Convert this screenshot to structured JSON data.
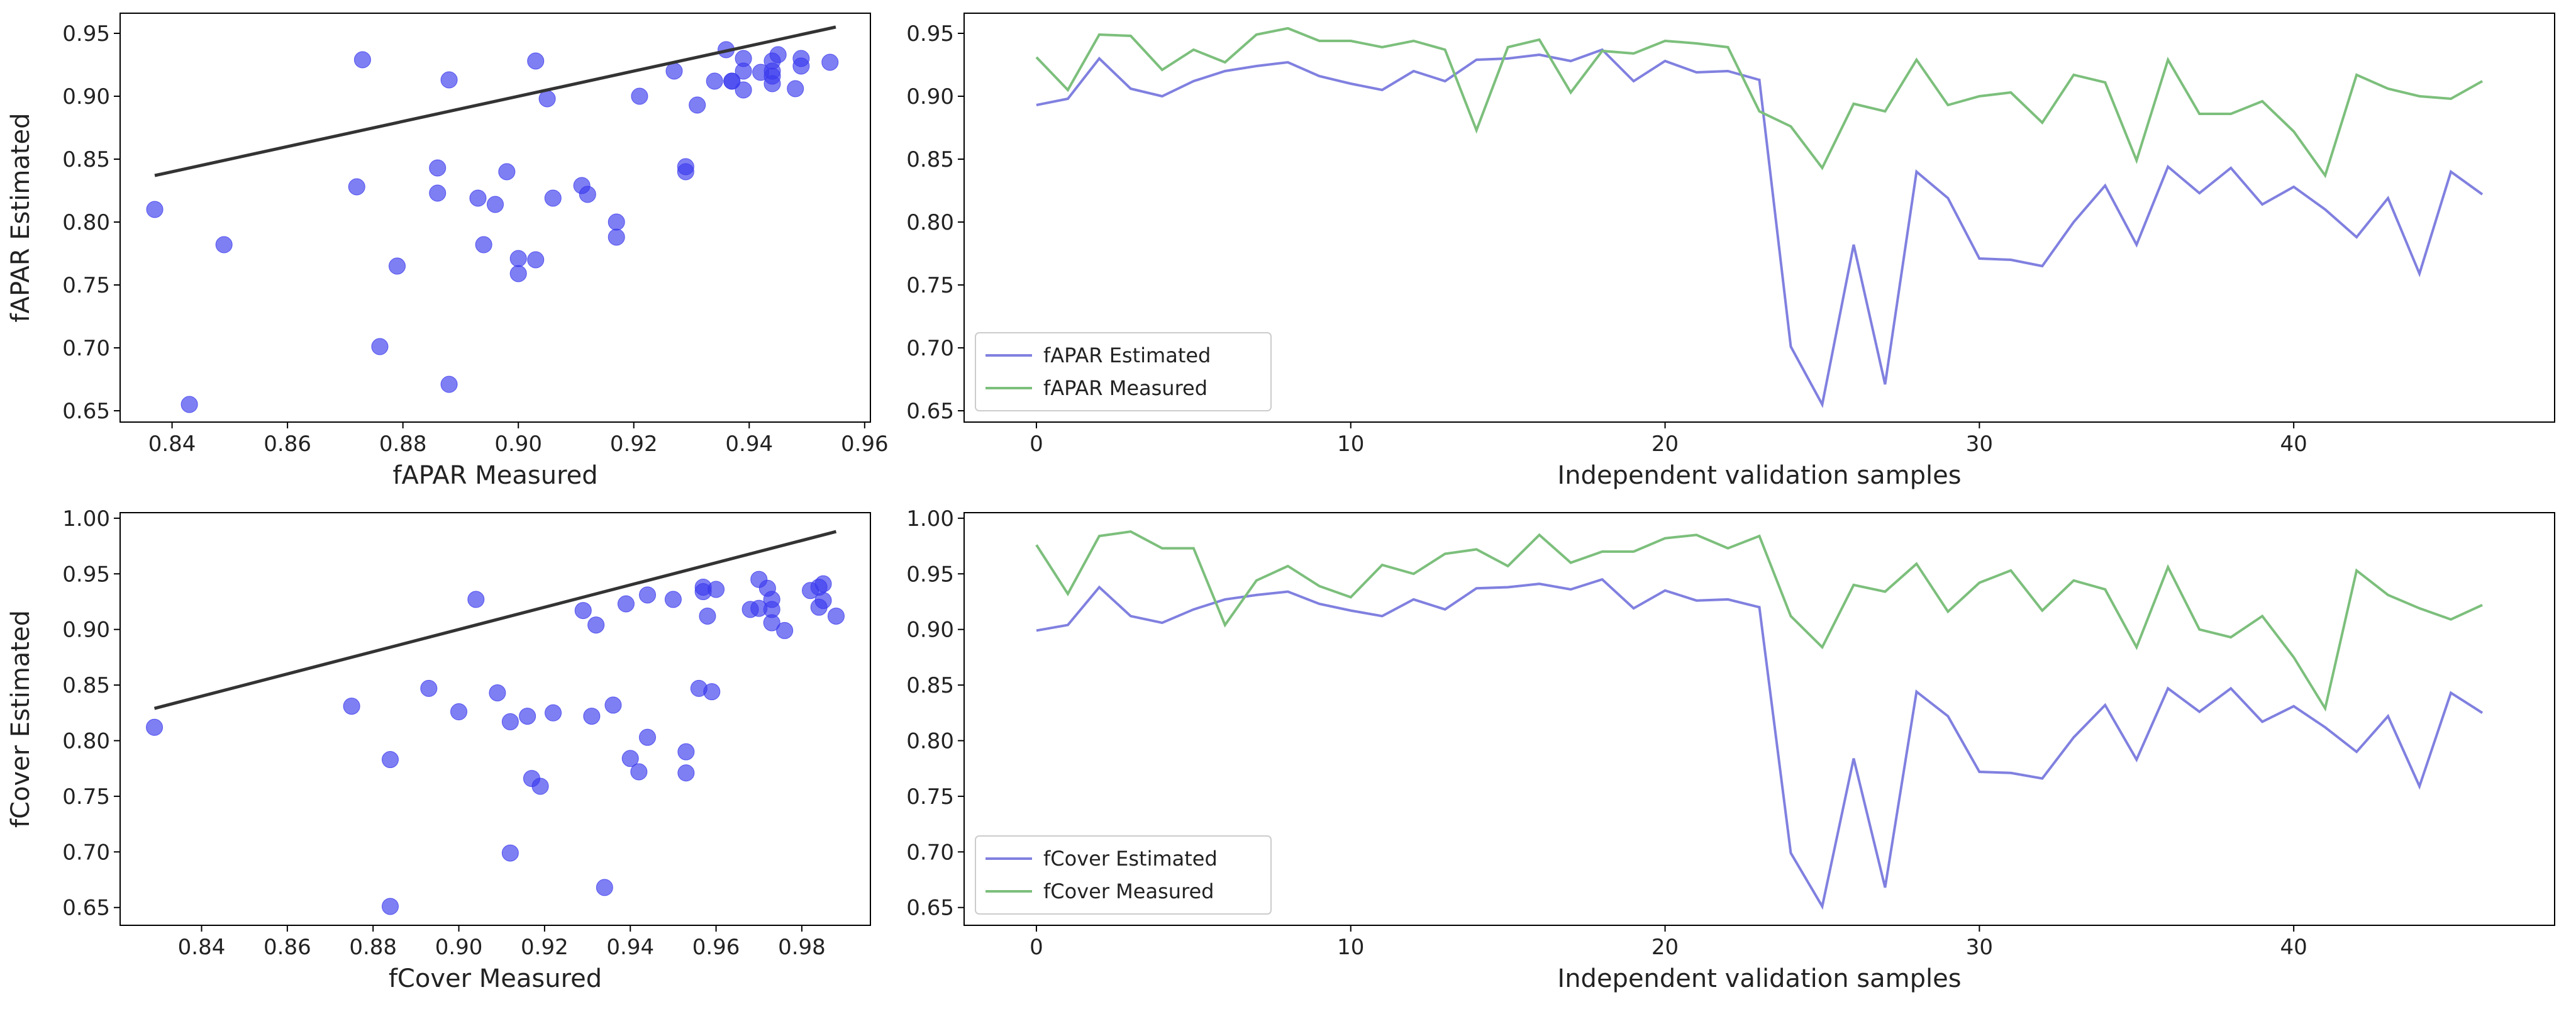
{
  "chart_data": [
    {
      "type": "scatter",
      "xlabel": "fAPAR Measured",
      "ylabel": "fAPAR Estimated",
      "color": "#3a3aee",
      "x": [
        0.931,
        0.905,
        0.949,
        0.948,
        0.921,
        0.937,
        0.927,
        0.949,
        0.954,
        0.944,
        0.944,
        0.939,
        0.944,
        0.937,
        0.873,
        0.939,
        0.945,
        0.903,
        0.936,
        0.934,
        0.944,
        0.942,
        0.939,
        0.888,
        0.876,
        0.843,
        0.894,
        0.888,
        0.929,
        0.893,
        0.9,
        0.903,
        0.879,
        0.917,
        0.911,
        0.849,
        0.929,
        0.886,
        0.886,
        0.896,
        0.872,
        0.837,
        0.917,
        0.906,
        0.9,
        0.898,
        0.912
      ],
      "y": [
        0.893,
        0.898,
        0.93,
        0.906,
        0.9,
        0.912,
        0.92,
        0.924,
        0.927,
        0.916,
        0.91,
        0.905,
        0.92,
        0.912,
        0.929,
        0.93,
        0.933,
        0.928,
        0.937,
        0.912,
        0.928,
        0.919,
        0.92,
        0.913,
        0.701,
        0.655,
        0.782,
        0.671,
        0.84,
        0.819,
        0.771,
        0.77,
        0.765,
        0.8,
        0.829,
        0.782,
        0.844,
        0.823,
        0.843,
        0.814,
        0.828,
        0.81,
        0.788,
        0.819,
        0.759,
        0.84,
        0.822
      ],
      "identity_line": {
        "x": [
          0.837,
          0.955
        ],
        "y": [
          0.837,
          0.955
        ],
        "color": "#333333"
      },
      "xlim": [
        0.831,
        0.961
      ],
      "xticks": [
        0.84,
        0.86,
        0.88,
        {
          "value": 0.9,
          "label": "0.90"
        },
        0.92,
        0.94,
        0.96
      ],
      "ylim": [
        0.641,
        0.966
      ],
      "yticks": [
        0.65,
        {
          "value": 0.7,
          "label": "0.70"
        },
        0.75,
        {
          "value": 0.8,
          "label": "0.80"
        },
        0.85,
        {
          "value": 0.9,
          "label": "0.90"
        },
        0.95
      ]
    },
    {
      "type": "line",
      "xlabel": "Independent validation samples",
      "legend": "lower left",
      "x": [
        0,
        1,
        2,
        3,
        4,
        5,
        6,
        7,
        8,
        9,
        10,
        11,
        12,
        13,
        14,
        15,
        16,
        17,
        18,
        19,
        20,
        21,
        22,
        23,
        24,
        25,
        26,
        27,
        28,
        29,
        30,
        31,
        32,
        33,
        34,
        35,
        36,
        37,
        38,
        39,
        40,
        41,
        42,
        43,
        44,
        45,
        46
      ],
      "series": [
        {
          "name": "fAPAR Estimated",
          "color": "#8080e0",
          "values": [
            0.893,
            0.898,
            0.93,
            0.906,
            0.9,
            0.912,
            0.92,
            0.924,
            0.927,
            0.916,
            0.91,
            0.905,
            0.92,
            0.912,
            0.929,
            0.93,
            0.933,
            0.928,
            0.937,
            0.912,
            0.928,
            0.919,
            0.92,
            0.913,
            0.701,
            0.655,
            0.782,
            0.671,
            0.84,
            0.819,
            0.771,
            0.77,
            0.765,
            0.8,
            0.829,
            0.782,
            0.844,
            0.823,
            0.843,
            0.814,
            0.828,
            0.81,
            0.788,
            0.819,
            0.759,
            0.84,
            0.822
          ]
        },
        {
          "name": "fAPAR Measured",
          "color": "#7cbf7c",
          "values": [
            0.931,
            0.905,
            0.949,
            0.948,
            0.921,
            0.937,
            0.927,
            0.949,
            0.954,
            0.944,
            0.944,
            0.939,
            0.944,
            0.937,
            0.873,
            0.939,
            0.945,
            0.903,
            0.936,
            0.934,
            0.944,
            0.942,
            0.939,
            0.888,
            0.876,
            0.843,
            0.894,
            0.888,
            0.929,
            0.893,
            0.9,
            0.903,
            0.879,
            0.917,
            0.911,
            0.849,
            0.929,
            0.886,
            0.886,
            0.896,
            0.872,
            0.837,
            0.917,
            0.906,
            0.9,
            0.898,
            0.912
          ]
        }
      ],
      "xlim": [
        -2.3,
        48.3
      ],
      "xticks": [
        0,
        10,
        20,
        30,
        40
      ],
      "ylim": [
        0.641,
        0.966
      ],
      "yticks": [
        0.65,
        {
          "value": 0.7,
          "label": "0.70"
        },
        0.75,
        {
          "value": 0.8,
          "label": "0.80"
        },
        0.85,
        {
          "value": 0.9,
          "label": "0.90"
        },
        0.95
      ]
    },
    {
      "type": "scatter",
      "xlabel": "fCover Measured",
      "ylabel": "fCover Estimated",
      "color": "#3a3aee",
      "x": [
        0.976,
        0.932,
        0.984,
        0.988,
        0.973,
        0.973,
        0.904,
        0.944,
        0.957,
        0.939,
        0.929,
        0.958,
        0.95,
        0.968,
        0.972,
        0.957,
        0.985,
        0.96,
        0.97,
        0.97,
        0.982,
        0.985,
        0.973,
        0.984,
        0.912,
        0.884,
        0.94,
        0.934,
        0.959,
        0.916,
        0.942,
        0.953,
        0.917,
        0.944,
        0.936,
        0.884,
        0.956,
        0.9,
        0.893,
        0.912,
        0.875,
        0.829,
        0.953,
        0.931,
        0.919,
        0.909,
        0.922
      ],
      "y": [
        0.899,
        0.904,
        0.938,
        0.912,
        0.906,
        0.918,
        0.927,
        0.931,
        0.934,
        0.923,
        0.917,
        0.912,
        0.927,
        0.918,
        0.937,
        0.938,
        0.941,
        0.936,
        0.945,
        0.919,
        0.935,
        0.926,
        0.927,
        0.92,
        0.699,
        0.651,
        0.784,
        0.668,
        0.844,
        0.822,
        0.772,
        0.771,
        0.766,
        0.803,
        0.832,
        0.783,
        0.847,
        0.826,
        0.847,
        0.817,
        0.831,
        0.812,
        0.79,
        0.822,
        0.759,
        0.843,
        0.825
      ],
      "identity_line": {
        "x": [
          0.829,
          0.988
        ],
        "y": [
          0.829,
          0.988
        ],
        "color": "#333333"
      },
      "xlim": [
        0.821,
        0.996
      ],
      "xticks": [
        0.84,
        0.86,
        0.88,
        {
          "value": 0.9,
          "label": "0.90"
        },
        0.92,
        0.94,
        0.96,
        0.98
      ],
      "ylim": [
        0.634,
        1.005
      ],
      "yticks": [
        0.65,
        {
          "value": 0.7,
          "label": "0.70"
        },
        0.75,
        {
          "value": 0.8,
          "label": "0.80"
        },
        0.85,
        {
          "value": 0.9,
          "label": "0.90"
        },
        0.95,
        {
          "value": 1.0,
          "label": "1.00"
        }
      ]
    },
    {
      "type": "line",
      "xlabel": "Independent validation samples",
      "legend": "lower left",
      "x": [
        0,
        1,
        2,
        3,
        4,
        5,
        6,
        7,
        8,
        9,
        10,
        11,
        12,
        13,
        14,
        15,
        16,
        17,
        18,
        19,
        20,
        21,
        22,
        23,
        24,
        25,
        26,
        27,
        28,
        29,
        30,
        31,
        32,
        33,
        34,
        35,
        36,
        37,
        38,
        39,
        40,
        41,
        42,
        43,
        44,
        45,
        46
      ],
      "series": [
        {
          "name": "fCover Estimated",
          "color": "#8080e0",
          "values": [
            0.899,
            0.904,
            0.938,
            0.912,
            0.906,
            0.918,
            0.927,
            0.931,
            0.934,
            0.923,
            0.917,
            0.912,
            0.927,
            0.918,
            0.937,
            0.938,
            0.941,
            0.936,
            0.945,
            0.919,
            0.935,
            0.926,
            0.927,
            0.92,
            0.699,
            0.651,
            0.784,
            0.668,
            0.844,
            0.822,
            0.772,
            0.771,
            0.766,
            0.803,
            0.832,
            0.783,
            0.847,
            0.826,
            0.847,
            0.817,
            0.831,
            0.812,
            0.79,
            0.822,
            0.759,
            0.843,
            0.825
          ]
        },
        {
          "name": "fCover Measured",
          "color": "#7cbf7c",
          "values": [
            0.976,
            0.932,
            0.984,
            0.988,
            0.973,
            0.973,
            0.904,
            0.944,
            0.957,
            0.939,
            0.929,
            0.958,
            0.95,
            0.968,
            0.972,
            0.957,
            0.985,
            0.96,
            0.97,
            0.97,
            0.982,
            0.985,
            0.973,
            0.984,
            0.912,
            0.884,
            0.94,
            0.934,
            0.959,
            0.916,
            0.942,
            0.953,
            0.917,
            0.944,
            0.936,
            0.884,
            0.956,
            0.9,
            0.893,
            0.912,
            0.875,
            0.829,
            0.953,
            0.931,
            0.919,
            0.909,
            0.922
          ]
        }
      ],
      "xlim": [
        -2.3,
        48.3
      ],
      "xticks": [
        0,
        10,
        20,
        30,
        40
      ],
      "ylim": [
        0.634,
        1.005
      ],
      "yticks": [
        0.65,
        {
          "value": 0.7,
          "label": "0.70"
        },
        0.75,
        {
          "value": 0.8,
          "label": "0.80"
        },
        0.85,
        {
          "value": 0.9,
          "label": "0.90"
        },
        0.95,
        {
          "value": 1.0,
          "label": "1.00"
        }
      ]
    }
  ]
}
